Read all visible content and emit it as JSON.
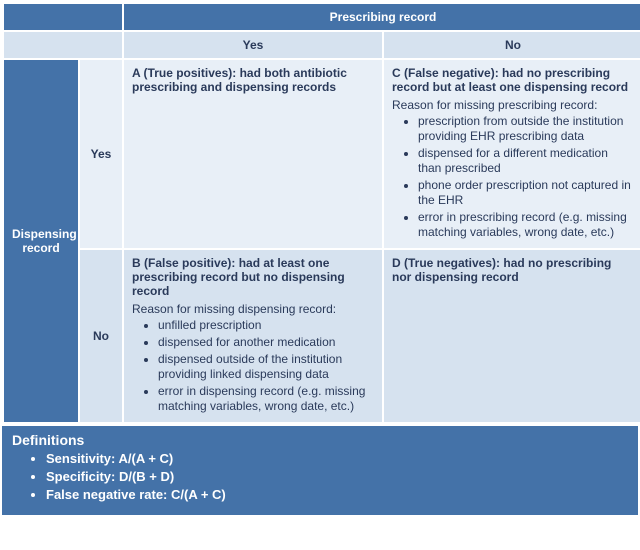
{
  "colors": {
    "header_blue": "#4472a8",
    "sub_header": "#d6e2ef",
    "cell_light": "#e8eff7",
    "cell_mid": "#d6e2ef",
    "text_dark": "#2a3a5a",
    "border": "#ffffff"
  },
  "table": {
    "top_header": "Prescribing record",
    "col_yes": "Yes",
    "col_no": "No",
    "side_header": "Dispensing record",
    "row_yes": "Yes",
    "row_no": "No",
    "cells": {
      "A": {
        "lead": "A (True positives): had both antibiotic prescribing and dispensing records"
      },
      "C": {
        "lead": "C (False negative): had no prescribing record but at least one dispensing record",
        "reason_title": "Reason for missing prescribing record:",
        "reasons": [
          "prescription from outside the institution providing EHR prescribing data",
          "dispensed for a different medication than prescribed",
          "phone order prescription not captured in the EHR",
          "error in prescribing record (e.g. missing matching variables, wrong date, etc.)"
        ]
      },
      "B": {
        "lead": "B (False positive): had at least one prescribing record but no dispensing record",
        "reason_title": "Reason for missing dispensing record:",
        "reasons": [
          "unfilled prescription",
          "dispensed for another medication",
          "dispensed outside of the institution providing linked dispensing data",
          "error in dispensing record (e.g. missing matching variables, wrong date, etc.)"
        ]
      },
      "D": {
        "lead": "D (True negatives): had no prescribing nor dispensing record"
      }
    }
  },
  "definitions": {
    "title": "Definitions",
    "items": [
      "Sensitivity: A/(A + C)",
      "Specificity: D/(B + D)",
      "False negative rate: C/(A + C)"
    ]
  }
}
